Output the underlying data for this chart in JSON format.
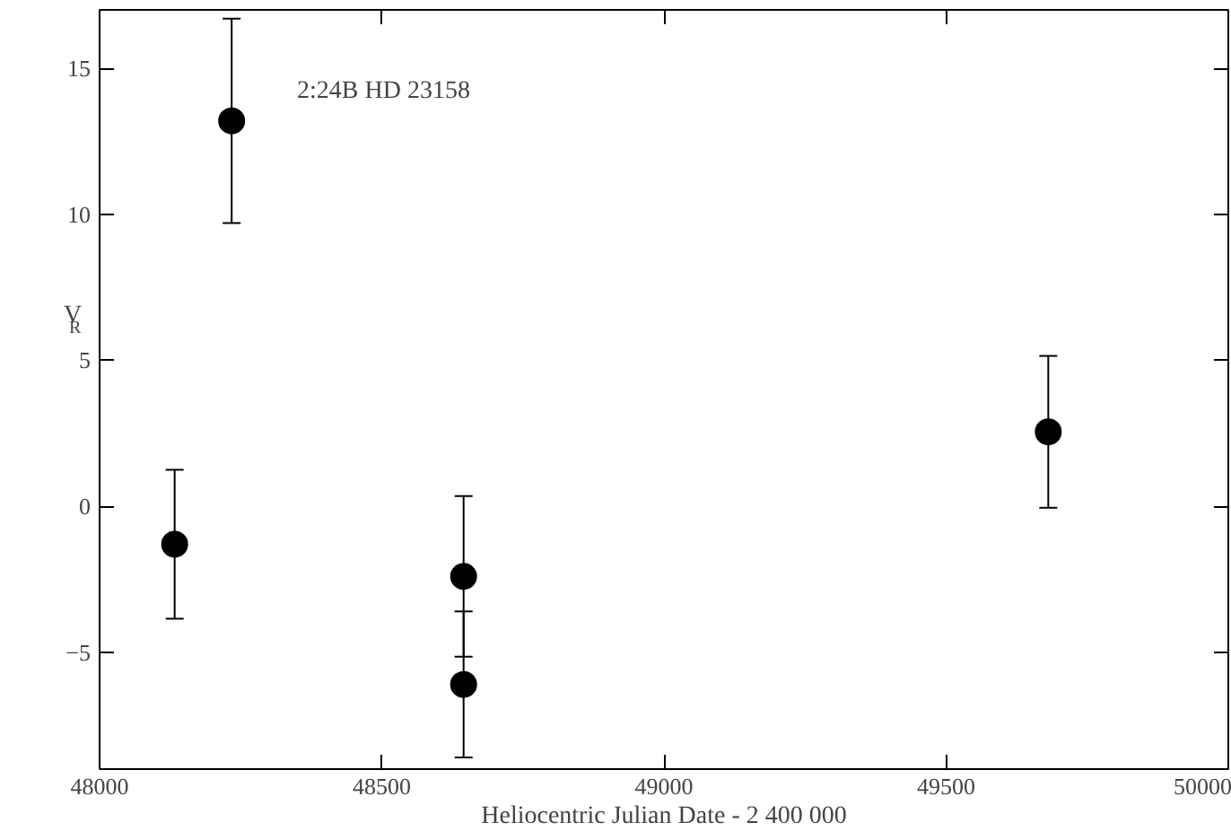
{
  "chart_data": {
    "type": "scatter",
    "xlabel": "Heliocentric Julian Date - 2 400 000",
    "ylabel": "V$_{R}$",
    "annotations": [
      "2:24B   HD 23158"
    ],
    "x": [
      48133,
      48234,
      48645,
      48645,
      49681
    ],
    "values": [
      -1.3,
      13.2,
      -2.4,
      -6.1,
      2.55
    ],
    "errors": [
      2.55,
      3.5,
      2.75,
      2.5,
      2.6
    ],
    "color": "#000000",
    "marker": "circle",
    "xlim": [
      48000,
      50000
    ],
    "xticks": [
      48000,
      48500,
      49000,
      49500,
      50000
    ],
    "ylim": [
      -9,
      17
    ],
    "yticks": [
      -5,
      0,
      5,
      10,
      15
    ],
    "grid": false
  }
}
